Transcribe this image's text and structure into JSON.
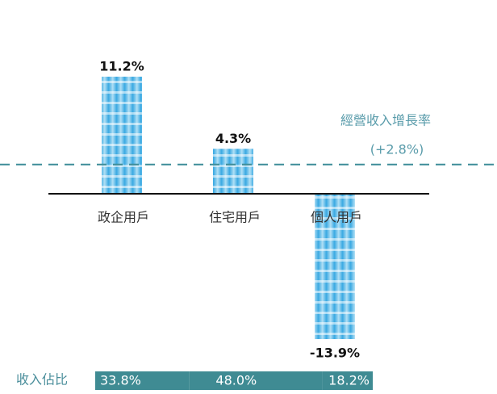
{
  "chart_data": {
    "type": "bar",
    "categories": [
      "政企用戶",
      "住宅用戶",
      "個人用戶"
    ],
    "values": [
      11.2,
      4.3,
      -13.9
    ],
    "value_labels": [
      "11.2%",
      "4.3%",
      "-13.9%"
    ],
    "color": "#4ab4e6",
    "reference": {
      "label": "經營收入增長率",
      "value": 2.8,
      "value_label": "(+2.8%)",
      "color": "#3d8c98"
    },
    "share": {
      "label": "收入佔比",
      "values": [
        33.8,
        48.0,
        18.2
      ],
      "value_labels": [
        "33.8%",
        "48.0%",
        "18.2%"
      ],
      "color": "#3f8b93"
    }
  }
}
